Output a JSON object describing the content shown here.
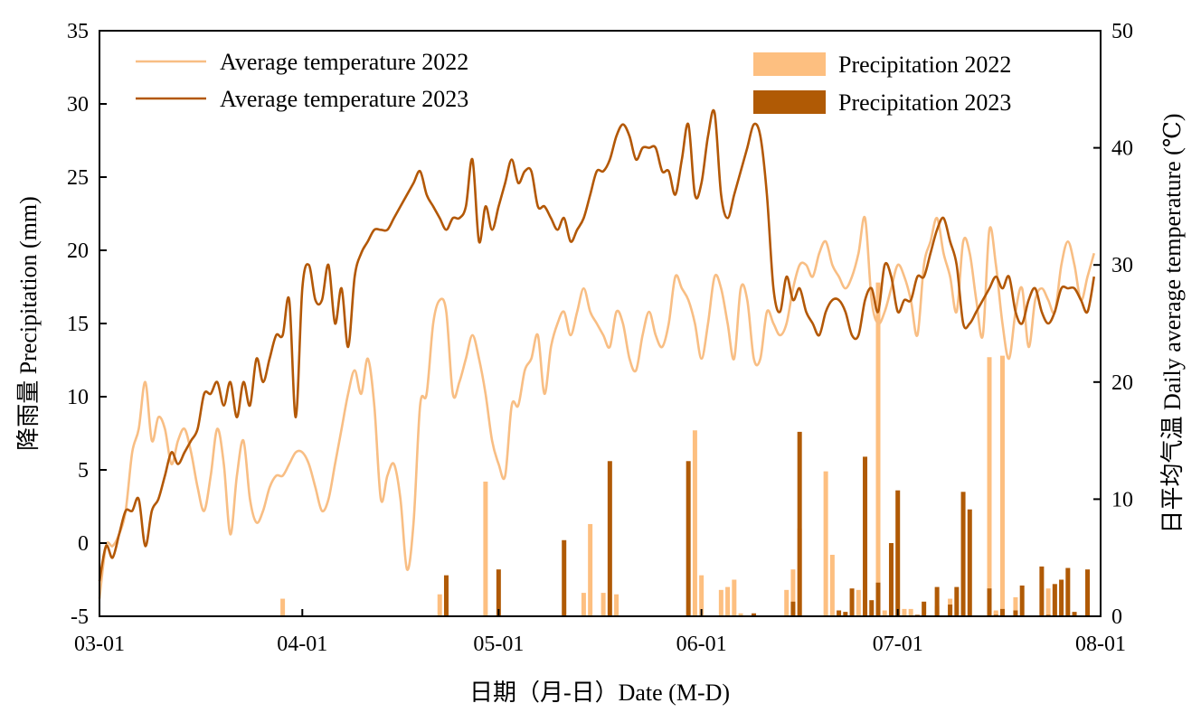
{
  "chart_data": {
    "type": "bar+line",
    "title": "",
    "xlabel": "日期（月-日）Date (M-D)",
    "ylabel_left": "降雨量 Precipitation (mm)",
    "ylabel_right": "日平均气温 Daily average temperature (℃)",
    "x_ticks": [
      "03-01",
      "04-01",
      "05-01",
      "06-01",
      "07-01",
      "08-01"
    ],
    "x_tick_days": [
      0,
      31,
      61,
      92,
      122,
      153
    ],
    "ylim_left": [
      -5,
      35
    ],
    "yticks_left": [
      35,
      30,
      25,
      20,
      15,
      10,
      5,
      0,
      -5
    ],
    "ylim_right": [
      0,
      50
    ],
    "yticks_right": [
      50,
      40,
      30,
      20,
      10,
      0
    ],
    "grid": false,
    "legend": {
      "lines_placement": "top-left",
      "bars_placement": "top-right",
      "entries": [
        {
          "label": "Average temperature 2022",
          "kind": "line",
          "color": "#f8be84"
        },
        {
          "label": "Average temperature 2023",
          "kind": "line",
          "color": "#b35806"
        },
        {
          "label": "Precipitation 2022",
          "kind": "bar",
          "color": "#fdbf80"
        },
        {
          "label": "Precipitation 2023",
          "kind": "bar",
          "color": "#b05a05"
        }
      ]
    },
    "series": [
      {
        "name": "Average temperature 2022",
        "kind": "line",
        "axis": "right",
        "color": "#f8be84",
        "x": [
          0,
          1,
          2,
          3,
          4,
          5,
          6,
          7,
          8,
          9,
          10,
          11,
          12,
          13,
          14,
          15,
          16,
          17,
          18,
          19,
          20,
          21,
          22,
          23,
          24,
          25,
          26,
          27,
          28,
          29,
          30,
          31,
          32,
          33,
          34,
          35,
          36,
          37,
          38,
          39,
          40,
          41,
          42,
          43,
          44,
          45,
          46,
          47,
          48,
          49,
          50,
          51,
          52,
          53,
          54,
          55,
          56,
          57,
          58,
          59,
          60,
          61,
          62,
          63,
          64,
          65,
          66,
          67,
          68,
          69,
          70,
          71,
          72,
          73,
          74,
          75,
          76,
          77,
          78,
          79,
          80,
          81,
          82,
          83,
          84,
          85,
          86,
          87,
          88,
          89,
          90,
          91,
          92,
          93,
          94,
          95,
          96,
          97,
          98,
          99,
          100,
          101,
          102,
          103,
          104,
          105,
          106,
          107,
          108,
          109,
          110,
          111,
          112,
          113,
          114,
          115,
          116,
          117,
          118,
          119,
          120,
          121,
          122,
          123,
          124,
          125,
          126,
          127,
          128,
          129,
          130,
          131,
          132,
          133,
          134,
          135,
          136,
          137,
          138,
          139,
          140,
          141,
          142,
          143,
          144,
          145,
          146,
          147,
          148,
          149,
          150,
          151,
          152
        ],
        "values": [
          1.5,
          6,
          6,
          7,
          9,
          14,
          16,
          20,
          15,
          17,
          16,
          13,
          15,
          16,
          14,
          11,
          9,
          12,
          16,
          13,
          7,
          12,
          15,
          10,
          8,
          9,
          11,
          12,
          12,
          13,
          14,
          14,
          13,
          11,
          9,
          10,
          13,
          16,
          19,
          21,
          19,
          22,
          18,
          10,
          12,
          13,
          10,
          4,
          8,
          18,
          19,
          25,
          27,
          26,
          19,
          20,
          22,
          24,
          22,
          19,
          15,
          13,
          12,
          18,
          18,
          21,
          22,
          24,
          19,
          23,
          25,
          26,
          24,
          26,
          28,
          26,
          25,
          24,
          23,
          26,
          25,
          22,
          21,
          24,
          26,
          24,
          23,
          25,
          29,
          28,
          27,
          25,
          22,
          25,
          29,
          28,
          25,
          22,
          28,
          27,
          22,
          22,
          26,
          25,
          24,
          25,
          28,
          30,
          30,
          29,
          31,
          32,
          30,
          29,
          28,
          29,
          31,
          34,
          27,
          25,
          26,
          28,
          30,
          29,
          27,
          24,
          30,
          32,
          34,
          31,
          29,
          26,
          32,
          31,
          27,
          24,
          33,
          30,
          25,
          22,
          26,
          28,
          23,
          27,
          28,
          27,
          26,
          30,
          32,
          30,
          27,
          29,
          31
        ]
      },
      {
        "name": "Average temperature 2023",
        "kind": "line",
        "axis": "right",
        "color": "#b35806",
        "x": [
          0,
          1,
          2,
          3,
          4,
          5,
          6,
          7,
          8,
          9,
          10,
          11,
          12,
          13,
          14,
          15,
          16,
          17,
          18,
          19,
          20,
          21,
          22,
          23,
          24,
          25,
          26,
          27,
          28,
          29,
          30,
          31,
          32,
          33,
          34,
          35,
          36,
          37,
          38,
          39,
          40,
          41,
          42,
          43,
          44,
          45,
          46,
          47,
          48,
          49,
          50,
          51,
          52,
          53,
          54,
          55,
          56,
          57,
          58,
          59,
          60,
          61,
          62,
          63,
          64,
          65,
          66,
          67,
          68,
          69,
          70,
          71,
          72,
          73,
          74,
          75,
          76,
          77,
          78,
          79,
          80,
          81,
          82,
          83,
          84,
          85,
          86,
          87,
          88,
          89,
          90,
          91,
          92,
          93,
          94,
          95,
          96,
          97,
          98,
          99,
          100,
          101,
          102,
          103,
          104,
          105,
          106,
          107,
          108,
          109,
          110,
          111,
          112,
          113,
          114,
          115,
          116,
          117,
          118,
          119,
          120,
          121,
          122,
          123,
          124,
          125,
          126,
          127,
          128,
          129,
          130,
          131,
          132,
          133,
          134,
          135,
          136,
          137,
          138,
          139,
          140,
          141,
          142,
          143,
          144,
          145,
          146,
          147,
          148,
          149,
          150,
          151,
          152
        ],
        "values": [
          3,
          6,
          5,
          7,
          9,
          9,
          10,
          6,
          9,
          10,
          12,
          14,
          13,
          14,
          15,
          16,
          19,
          19,
          20,
          18,
          20,
          17,
          20,
          18,
          22,
          20,
          22,
          24,
          24,
          27,
          17,
          28,
          30,
          27,
          27,
          30,
          25,
          28,
          23,
          29,
          31,
          32,
          33,
          33,
          33,
          34,
          35,
          36,
          37,
          38,
          36,
          35,
          34,
          33,
          34,
          34,
          35,
          39,
          32,
          35,
          33,
          35,
          37,
          39,
          37,
          38,
          38,
          35,
          35,
          34,
          33,
          34,
          32,
          33,
          34,
          36,
          38,
          38,
          39,
          41,
          42,
          41,
          39,
          40,
          40,
          40,
          38,
          38,
          36,
          39,
          42,
          36,
          37,
          41,
          43,
          36,
          34,
          36,
          38,
          40,
          42,
          41,
          36,
          28,
          26,
          29,
          27,
          28,
          26,
          25,
          24,
          26,
          27,
          27,
          26,
          24,
          24,
          27,
          28,
          26,
          30,
          29,
          26,
          27,
          27,
          29,
          29,
          31,
          33,
          34,
          32,
          30,
          25,
          25,
          26,
          27,
          28,
          29,
          28,
          29,
          26,
          25,
          27,
          28,
          26,
          25,
          26,
          28,
          28,
          28,
          27,
          26,
          29
        ]
      },
      {
        "name": "Precipitation 2022",
        "kind": "bar",
        "axis": "left",
        "color": "#fdbf80",
        "x": [
          28,
          52,
          59,
          74,
          75,
          77,
          79,
          91,
          92,
          95,
          96,
          97,
          98,
          105,
          106,
          107,
          111,
          112,
          116,
          117,
          119,
          120,
          121,
          123,
          124,
          128,
          130,
          136,
          137,
          137,
          138,
          140,
          145,
          146
        ],
        "values": [
          -3.8,
          -3.5,
          4.2,
          -3.4,
          1.3,
          -3.4,
          -3.5,
          7.7,
          -2.2,
          -3.2,
          -3.0,
          -2.5,
          -4.8,
          -3.2,
          -1.8,
          1.0,
          4.9,
          -0.8,
          -3.2,
          -4.7,
          17.8,
          -4.6,
          -3.2,
          -4.5,
          -4.5,
          -4.3,
          -3.8,
          12.7,
          -4.7,
          -4.6,
          12.8,
          -3.7,
          -3.1,
          -2.8
        ]
      },
      {
        "name": "Precipitation 2023",
        "kind": "bar",
        "axis": "left",
        "color": "#b05a05",
        "x": [
          53,
          61,
          71,
          78,
          90,
          100,
          106,
          107,
          113,
          114,
          115,
          117,
          118,
          119,
          121,
          122,
          125,
          126,
          128,
          130,
          131,
          132,
          133,
          136,
          137,
          138,
          140,
          141,
          144,
          145,
          146,
          147,
          148,
          149,
          151
        ],
        "values": [
          -2.2,
          -1.8,
          0.2,
          5.6,
          5.6,
          -4.8,
          -4.0,
          7.6,
          -4.6,
          -4.7,
          -3.1,
          5.9,
          -3.9,
          -2.7,
          0.0,
          3.6,
          -4.9,
          -4.0,
          -3.0,
          -4.2,
          -3.0,
          3.5,
          2.3,
          -3.1,
          -4.9,
          -4.5,
          -4.6,
          -2.9,
          -1.6,
          -4.9,
          -2.8,
          -2.5,
          -1.7,
          -4.7,
          -1.8
        ]
      }
    ]
  }
}
